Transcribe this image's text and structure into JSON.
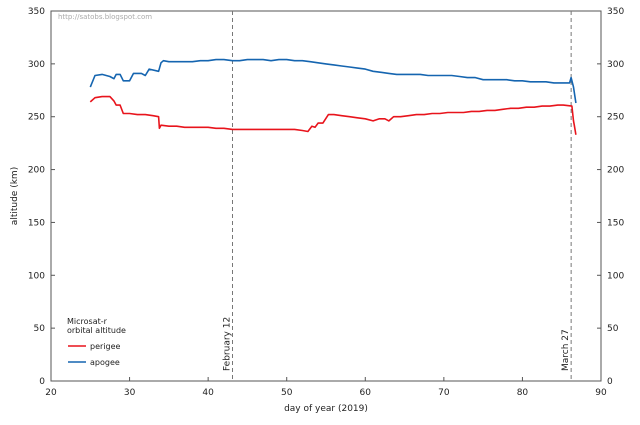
{
  "watermark": "http://satobs.blogspot.com",
  "chart_data": {
    "type": "line",
    "title": "",
    "xlabel": "day of year (2019)",
    "ylabel": "altitude (km)",
    "xlim": [
      20,
      90
    ],
    "ylim": [
      0,
      350
    ],
    "xticks": [
      20,
      30,
      40,
      50,
      60,
      70,
      80,
      90
    ],
    "yticks": [
      0,
      50,
      100,
      150,
      200,
      250,
      300,
      350
    ],
    "right_axis_ticks": true,
    "grid": false,
    "legend": {
      "placement": "bottom-left",
      "title_lines": [
        "Microsat-r",
        "orbital altitude"
      ]
    },
    "annotations": [
      {
        "label": "February 12",
        "x": 43.1
      },
      {
        "label": "March 27",
        "x": 86.2
      }
    ],
    "series": [
      {
        "name": "perigee",
        "color": "#e8141c",
        "points": [
          [
            25.0,
            264
          ],
          [
            25.6,
            268
          ],
          [
            26.5,
            269
          ],
          [
            27.5,
            269
          ],
          [
            28.0,
            265
          ],
          [
            28.3,
            261
          ],
          [
            28.8,
            261
          ],
          [
            29.2,
            253
          ],
          [
            30.0,
            253
          ],
          [
            31.0,
            252
          ],
          [
            32.0,
            252
          ],
          [
            33.0,
            251
          ],
          [
            33.7,
            250
          ],
          [
            33.8,
            239
          ],
          [
            34.0,
            242
          ],
          [
            35.0,
            241
          ],
          [
            36.0,
            241
          ],
          [
            37.0,
            240
          ],
          [
            38.0,
            240
          ],
          [
            39.0,
            240
          ],
          [
            40.0,
            240
          ],
          [
            41.0,
            239
          ],
          [
            42.0,
            239
          ],
          [
            43.1,
            238
          ],
          [
            44.0,
            238
          ],
          [
            45.0,
            238
          ],
          [
            46.0,
            238
          ],
          [
            47.0,
            238
          ],
          [
            48.0,
            238
          ],
          [
            49.0,
            238
          ],
          [
            50.0,
            238
          ],
          [
            51.0,
            238
          ],
          [
            52.0,
            237
          ],
          [
            52.7,
            236
          ],
          [
            53.2,
            241
          ],
          [
            53.6,
            240
          ],
          [
            54.0,
            244
          ],
          [
            54.6,
            244
          ],
          [
            55.3,
            252
          ],
          [
            56.0,
            252
          ],
          [
            57.0,
            251
          ],
          [
            58.0,
            250
          ],
          [
            59.0,
            249
          ],
          [
            60.0,
            248
          ],
          [
            61.0,
            246
          ],
          [
            61.8,
            248
          ],
          [
            62.5,
            248
          ],
          [
            63.0,
            246
          ],
          [
            63.6,
            250
          ],
          [
            64.5,
            250
          ],
          [
            65.5,
            251
          ],
          [
            66.5,
            252
          ],
          [
            67.5,
            252
          ],
          [
            68.5,
            253
          ],
          [
            69.5,
            253
          ],
          [
            70.5,
            254
          ],
          [
            71.5,
            254
          ],
          [
            72.5,
            254
          ],
          [
            73.5,
            255
          ],
          [
            74.5,
            255
          ],
          [
            75.5,
            256
          ],
          [
            76.5,
            256
          ],
          [
            77.5,
            257
          ],
          [
            78.5,
            258
          ],
          [
            79.5,
            258
          ],
          [
            80.5,
            259
          ],
          [
            81.5,
            259
          ],
          [
            82.5,
            260
          ],
          [
            83.5,
            260
          ],
          [
            84.5,
            261
          ],
          [
            85.2,
            261
          ],
          [
            86.3,
            260
          ],
          [
            86.5,
            246
          ],
          [
            86.6,
            242
          ],
          [
            86.8,
            233
          ]
        ]
      },
      {
        "name": "apogee",
        "color": "#1565b0",
        "points": [
          [
            25.0,
            278
          ],
          [
            25.6,
            289
          ],
          [
            26.5,
            290
          ],
          [
            27.5,
            288
          ],
          [
            28.0,
            286
          ],
          [
            28.3,
            290
          ],
          [
            28.8,
            290
          ],
          [
            29.2,
            284
          ],
          [
            30.0,
            284
          ],
          [
            30.5,
            291
          ],
          [
            31.5,
            291
          ],
          [
            32.0,
            289
          ],
          [
            32.5,
            295
          ],
          [
            33.7,
            293
          ],
          [
            34.0,
            301
          ],
          [
            34.3,
            303
          ],
          [
            35.0,
            302
          ],
          [
            36.0,
            302
          ],
          [
            37.0,
            302
          ],
          [
            38.0,
            302
          ],
          [
            39.0,
            303
          ],
          [
            40.0,
            303
          ],
          [
            41.0,
            304
          ],
          [
            42.0,
            304
          ],
          [
            43.1,
            303
          ],
          [
            44.0,
            303
          ],
          [
            45.0,
            304
          ],
          [
            46.0,
            304
          ],
          [
            47.0,
            304
          ],
          [
            48.0,
            303
          ],
          [
            49.0,
            304
          ],
          [
            50.0,
            304
          ],
          [
            51.0,
            303
          ],
          [
            52.0,
            303
          ],
          [
            53.0,
            302
          ],
          [
            54.0,
            301
          ],
          [
            55.0,
            300
          ],
          [
            56.0,
            299
          ],
          [
            57.0,
            298
          ],
          [
            58.0,
            297
          ],
          [
            59.0,
            296
          ],
          [
            60.0,
            295
          ],
          [
            61.0,
            293
          ],
          [
            62.0,
            292
          ],
          [
            63.0,
            291
          ],
          [
            64.0,
            290
          ],
          [
            65.0,
            290
          ],
          [
            66.0,
            290
          ],
          [
            67.0,
            290
          ],
          [
            68.0,
            289
          ],
          [
            69.0,
            289
          ],
          [
            70.0,
            289
          ],
          [
            71.0,
            289
          ],
          [
            72.0,
            288
          ],
          [
            73.0,
            287
          ],
          [
            74.0,
            287
          ],
          [
            75.0,
            285
          ],
          [
            76.0,
            285
          ],
          [
            77.0,
            285
          ],
          [
            78.0,
            285
          ],
          [
            79.0,
            284
          ],
          [
            80.0,
            284
          ],
          [
            81.0,
            283
          ],
          [
            82.0,
            283
          ],
          [
            83.0,
            283
          ],
          [
            84.0,
            282
          ],
          [
            85.0,
            282
          ],
          [
            86.0,
            282
          ],
          [
            86.2,
            287
          ],
          [
            86.5,
            278
          ],
          [
            86.8,
            263
          ]
        ]
      }
    ]
  }
}
